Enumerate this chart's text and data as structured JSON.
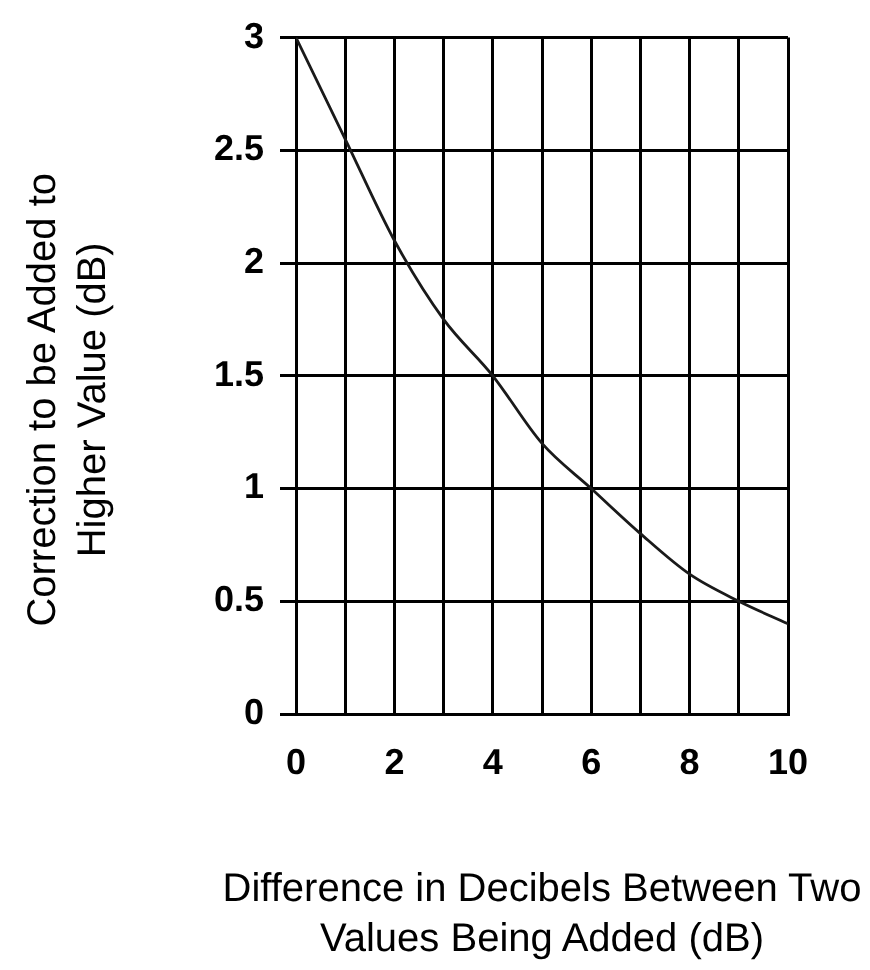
{
  "chart_data": {
    "type": "line",
    "xlabel": "Difference in Decibels Between Two Values Being Added (dB)",
    "ylabel": "Correction to be Added to Higher Value (dB)",
    "x": [
      0,
      1,
      2,
      3,
      4,
      5,
      6,
      7,
      8,
      9,
      10
    ],
    "values": [
      3,
      2.55,
      2.1,
      1.75,
      1.5,
      1.2,
      1,
      0.8,
      0.62,
      0.5,
      0.4
    ],
    "color": "#1a1a1a",
    "xlim": [
      0,
      10
    ],
    "xticks": [
      0,
      {
        "value": 1,
        "label": null
      },
      2,
      {
        "value": 3,
        "label": null
      },
      4,
      {
        "value": 5,
        "label": null
      },
      6,
      {
        "value": 7,
        "label": null
      },
      8,
      {
        "value": 9,
        "label": null
      },
      10
    ],
    "ylim": [
      0,
      3
    ],
    "yticks": [
      0,
      0.5,
      1,
      1.5,
      2,
      2.5,
      3
    ],
    "grid": true
  }
}
